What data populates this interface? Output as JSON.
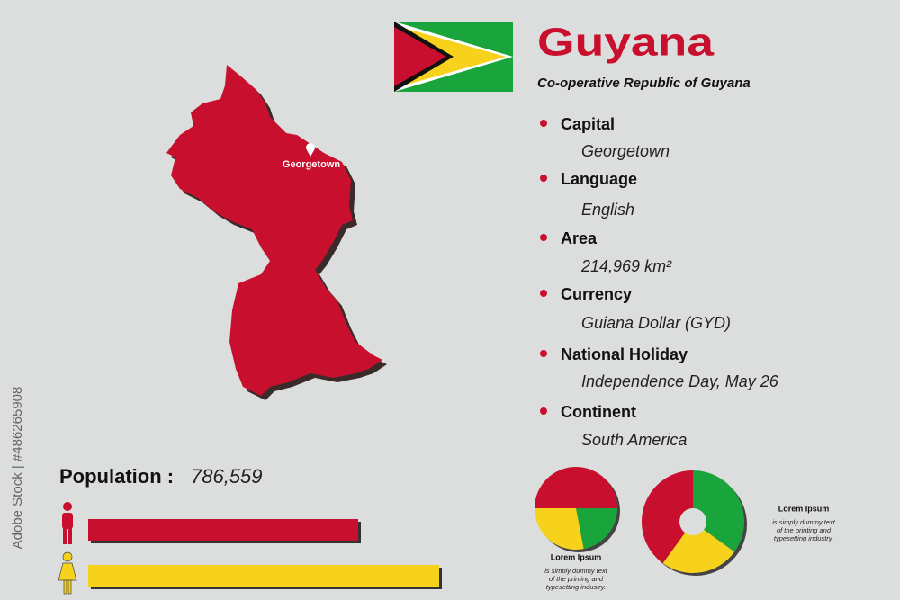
{
  "header": {
    "title": "Guyana",
    "subtitle": "Co-operative Republic of Guyana"
  },
  "map": {
    "label": "Georgetown"
  },
  "facts": [
    {
      "label": "Capital",
      "value": "Georgetown"
    },
    {
      "label": "Language",
      "value": "English"
    },
    {
      "label": "Area",
      "value": "214,969 km²"
    },
    {
      "label": "Currency",
      "value": "Guiana Dollar (GYD)"
    },
    {
      "label": "National Holiday",
      "value": "Independence Day, May 26"
    },
    {
      "label": "Continent",
      "value": "South America"
    }
  ],
  "population": {
    "label": "Population :",
    "value": "786,559"
  },
  "bars": [
    {
      "color": "#c8102e",
      "value": 50
    },
    {
      "color": "#f6d21c",
      "value": 65
    }
  ],
  "pies": [
    {
      "type": "pie",
      "colors": [
        "#c8102e",
        "#1aa53c",
        "#f6d21c"
      ],
      "values": [
        50,
        22,
        28
      ],
      "start": 270,
      "title": "Lorem Ipsum",
      "text": [
        "is simply dummy text",
        "of the printing and",
        "typesetting industry."
      ]
    },
    {
      "type": "donut",
      "colors": [
        "#1aa53c",
        "#f6d21c",
        "#c8102e"
      ],
      "values": [
        35,
        25,
        40
      ],
      "start": 0,
      "title": "Lorem Ipsum",
      "text": [
        "is simply dummy text",
        "of the printing and",
        "typesetting industry."
      ]
    }
  ],
  "watermark": "Adobe Stock | #486265908"
}
